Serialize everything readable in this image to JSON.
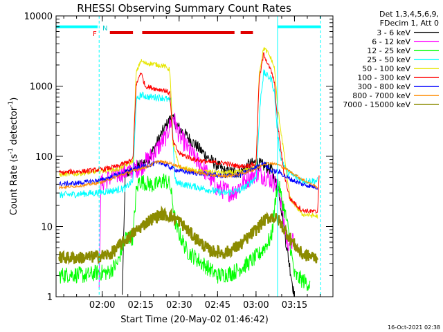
{
  "chart_data": {
    "type": "line",
    "title": "RHESSI Observing Summary Count Rates",
    "xlabel": "Start Time (20-May-02 01:46:42)",
    "ylabel": "Count Rate (s^-1 detector^-1)",
    "ylabel_parts": {
      "main": "Count Rate (s",
      "sup1": "-1",
      "mid": " detector",
      "sup2": "-1",
      "end": ")"
    },
    "yscale": "log",
    "ylim": [
      1,
      10000
    ],
    "xlim": [
      1.7,
      3.5
    ],
    "x_units": "hours UT",
    "x_ticks": [
      {
        "x": 2.0,
        "label": "02:00"
      },
      {
        "x": 2.25,
        "label": "02:15"
      },
      {
        "x": 2.5,
        "label": "02:30"
      },
      {
        "x": 2.75,
        "label": "02:45"
      },
      {
        "x": 3.0,
        "label": "03:00"
      },
      {
        "x": 3.25,
        "label": "03:15"
      }
    ],
    "y_ticks": [
      {
        "y": 1,
        "label": "1"
      },
      {
        "y": 10,
        "label": "10"
      },
      {
        "y": 100,
        "label": "100"
      },
      {
        "y": 1000,
        "label": "1000"
      },
      {
        "y": 10000,
        "label": "10000"
      }
    ],
    "legend_header": [
      "Det 1,3,4,5,6,9,",
      "FDecim 1, Att 0"
    ],
    "legend_position": "right",
    "annotations": {
      "night_label": "N",
      "flare_label": "F",
      "timestamp": "16-Oct-2021 02:38",
      "night_segments": [
        [
          1.7,
          1.97
        ],
        [
          3.14,
          3.42
        ]
      ],
      "night_level": 7000,
      "flare_segments": [
        [
          2.05,
          2.2
        ],
        [
          2.26,
          2.86
        ],
        [
          2.9,
          2.98
        ]
      ],
      "flare_level": 5800,
      "cyan_solid_lines": [
        1.7,
        3.14
      ],
      "cyan_dashed_lines": [
        1.98,
        3.42
      ]
    },
    "series": [
      {
        "name": "3 - 6 keV",
        "color": "#000000",
        "noise": 0.09,
        "points": [
          [
            2.13,
            1.0
          ],
          [
            2.15,
            55
          ],
          [
            2.2,
            65
          ],
          [
            2.3,
            90
          ],
          [
            2.4,
            240
          ],
          [
            2.45,
            360
          ],
          [
            2.5,
            250
          ],
          [
            2.6,
            150
          ],
          [
            2.7,
            90
          ],
          [
            2.8,
            60
          ],
          [
            2.9,
            60
          ],
          [
            2.95,
            75
          ],
          [
            3.0,
            82
          ],
          [
            3.1,
            65
          ],
          [
            3.15,
            30
          ],
          [
            3.2,
            5
          ],
          [
            3.25,
            1.0
          ]
        ]
      },
      {
        "name": "6 - 12 keV",
        "color": "#ff00ff",
        "noise": 0.14,
        "points": [
          [
            1.98,
            1.0
          ],
          [
            1.99,
            40
          ],
          [
            2.05,
            50
          ],
          [
            2.15,
            60
          ],
          [
            2.25,
            70
          ],
          [
            2.35,
            120
          ],
          [
            2.42,
            200
          ],
          [
            2.46,
            380
          ],
          [
            2.5,
            200
          ],
          [
            2.58,
            110
          ],
          [
            2.65,
            70
          ],
          [
            2.75,
            35
          ],
          [
            2.85,
            30
          ],
          [
            2.93,
            45
          ],
          [
            3.0,
            58
          ],
          [
            3.08,
            50
          ],
          [
            3.15,
            35
          ],
          [
            3.2,
            6
          ],
          [
            3.25,
            6
          ]
        ]
      },
      {
        "name": "12 - 25 keV",
        "color": "#00ff00",
        "noise": 0.12,
        "points": [
          [
            1.72,
            2.0
          ],
          [
            1.8,
            2.1
          ],
          [
            1.9,
            2.0
          ],
          [
            1.96,
            2.2
          ],
          [
            2.04,
            2.2
          ],
          [
            2.1,
            3.0
          ],
          [
            2.15,
            7
          ],
          [
            2.2,
            7
          ],
          [
            2.22,
            30
          ],
          [
            2.24,
            45
          ],
          [
            2.28,
            42
          ],
          [
            2.34,
            38
          ],
          [
            2.4,
            46
          ],
          [
            2.44,
            40
          ],
          [
            2.48,
            10
          ],
          [
            2.55,
            4.5
          ],
          [
            2.65,
            3
          ],
          [
            2.75,
            2
          ],
          [
            2.85,
            2.2
          ],
          [
            2.95,
            3
          ],
          [
            3.02,
            4
          ],
          [
            3.1,
            7
          ],
          [
            3.14,
            45
          ],
          [
            3.2,
            12
          ],
          [
            3.25,
            2
          ],
          [
            3.35,
            1.5
          ]
        ]
      },
      {
        "name": "25 - 50 keV",
        "color": "#00ffff",
        "noise": 0.05,
        "points": [
          [
            1.72,
            28
          ],
          [
            1.85,
            29
          ],
          [
            1.95,
            30
          ],
          [
            2.05,
            32
          ],
          [
            2.15,
            35
          ],
          [
            2.2,
            45
          ],
          [
            2.22,
            600
          ],
          [
            2.25,
            750
          ],
          [
            2.3,
            700
          ],
          [
            2.36,
            690
          ],
          [
            2.4,
            680
          ],
          [
            2.45,
            600
          ],
          [
            2.47,
            60
          ],
          [
            2.48,
            42
          ],
          [
            2.6,
            37
          ],
          [
            2.7,
            33
          ],
          [
            2.8,
            30
          ],
          [
            2.9,
            33
          ],
          [
            2.95,
            40
          ],
          [
            3.0,
            50
          ],
          [
            3.03,
            700
          ],
          [
            3.05,
            1550
          ],
          [
            3.1,
            1250
          ],
          [
            3.12,
            800
          ],
          [
            3.14,
            200
          ],
          [
            3.16,
            100
          ],
          [
            3.2,
            60
          ],
          [
            3.3,
            45
          ],
          [
            3.4,
            45
          ]
        ]
      },
      {
        "name": "50 - 100 keV",
        "color": "#e6e600",
        "noise": 0.035,
        "points": [
          [
            1.72,
            55
          ],
          [
            1.8,
            56
          ],
          [
            1.9,
            58
          ],
          [
            2.0,
            62
          ],
          [
            2.1,
            65
          ],
          [
            2.2,
            85
          ],
          [
            2.22,
            1500
          ],
          [
            2.25,
            2300
          ],
          [
            2.28,
            2100
          ],
          [
            2.32,
            2100
          ],
          [
            2.36,
            2000
          ],
          [
            2.4,
            1950
          ],
          [
            2.44,
            1700
          ],
          [
            2.46,
            150
          ],
          [
            2.5,
            70
          ],
          [
            2.6,
            62
          ],
          [
            2.7,
            60
          ],
          [
            2.8,
            58
          ],
          [
            2.9,
            60
          ],
          [
            2.95,
            65
          ],
          [
            3.0,
            70
          ],
          [
            3.02,
            1500
          ],
          [
            3.05,
            3500
          ],
          [
            3.08,
            2900
          ],
          [
            3.1,
            2400
          ],
          [
            3.12,
            1800
          ],
          [
            3.14,
            500
          ],
          [
            3.18,
            120
          ],
          [
            3.22,
            25
          ],
          [
            3.3,
            15
          ],
          [
            3.4,
            14
          ]
        ]
      },
      {
        "name": "100 - 300 keV",
        "color": "#ff0000",
        "noise": 0.035,
        "points": [
          [
            1.72,
            58
          ],
          [
            1.8,
            60
          ],
          [
            1.9,
            62
          ],
          [
            2.0,
            65
          ],
          [
            2.1,
            72
          ],
          [
            2.2,
            90
          ],
          [
            2.22,
            1000
          ],
          [
            2.25,
            1600
          ],
          [
            2.28,
            1000
          ],
          [
            2.32,
            950
          ],
          [
            2.36,
            900
          ],
          [
            2.4,
            880
          ],
          [
            2.44,
            800
          ],
          [
            2.46,
            160
          ],
          [
            2.5,
            110
          ],
          [
            2.6,
            90
          ],
          [
            2.7,
            82
          ],
          [
            2.8,
            80
          ],
          [
            2.85,
            75
          ],
          [
            2.9,
            72
          ],
          [
            2.95,
            74
          ],
          [
            3.0,
            78
          ],
          [
            3.02,
            1200
          ],
          [
            3.05,
            2900
          ],
          [
            3.08,
            2000
          ],
          [
            3.1,
            1600
          ],
          [
            3.12,
            1100
          ],
          [
            3.14,
            300
          ],
          [
            3.18,
            60
          ],
          [
            3.22,
            25
          ],
          [
            3.3,
            17
          ],
          [
            3.4,
            16
          ],
          [
            3.41,
            55
          ]
        ]
      },
      {
        "name": "300 - 800 keV",
        "color": "#0000ff",
        "noise": 0.035,
        "points": [
          [
            1.72,
            40
          ],
          [
            1.8,
            41
          ],
          [
            1.9,
            43
          ],
          [
            2.0,
            46
          ],
          [
            2.1,
            55
          ],
          [
            2.2,
            65
          ],
          [
            2.3,
            75
          ],
          [
            2.38,
            82
          ],
          [
            2.44,
            70
          ],
          [
            2.5,
            62
          ],
          [
            2.6,
            58
          ],
          [
            2.7,
            55
          ],
          [
            2.8,
            52
          ],
          [
            2.9,
            55
          ],
          [
            3.0,
            70
          ],
          [
            3.05,
            80
          ],
          [
            3.1,
            62
          ],
          [
            3.15,
            60
          ],
          [
            3.2,
            50
          ],
          [
            3.3,
            40
          ],
          [
            3.4,
            36
          ]
        ]
      },
      {
        "name": "800 - 7000 keV",
        "color": "#ff8c00",
        "noise": 0.02,
        "points": [
          [
            1.72,
            36
          ],
          [
            1.8,
            37
          ],
          [
            1.9,
            39
          ],
          [
            2.0,
            43
          ],
          [
            2.1,
            52
          ],
          [
            2.2,
            62
          ],
          [
            2.3,
            72
          ],
          [
            2.36,
            85
          ],
          [
            2.44,
            80
          ],
          [
            2.5,
            72
          ],
          [
            2.6,
            60
          ],
          [
            2.7,
            54
          ],
          [
            2.8,
            52
          ],
          [
            2.9,
            56
          ],
          [
            3.0,
            66
          ],
          [
            3.05,
            78
          ],
          [
            3.1,
            80
          ],
          [
            3.15,
            75
          ],
          [
            3.2,
            65
          ],
          [
            3.3,
            47
          ],
          [
            3.4,
            36
          ]
        ]
      },
      {
        "name": "7000 - 15000 keV",
        "color": "#8b8b00",
        "noise": 0.09,
        "points": [
          [
            1.72,
            3.6
          ],
          [
            1.85,
            3.6
          ],
          [
            1.95,
            3.7
          ],
          [
            2.05,
            4.0
          ],
          [
            2.1,
            5
          ],
          [
            2.2,
            8
          ],
          [
            2.3,
            12
          ],
          [
            2.38,
            15
          ],
          [
            2.45,
            14
          ],
          [
            2.5,
            12
          ],
          [
            2.6,
            7
          ],
          [
            2.7,
            4.5
          ],
          [
            2.8,
            4.2
          ],
          [
            2.9,
            5.5
          ],
          [
            3.0,
            9
          ],
          [
            3.05,
            12
          ],
          [
            3.1,
            14
          ],
          [
            3.15,
            12
          ],
          [
            3.2,
            8
          ],
          [
            3.25,
            5.5
          ],
          [
            3.3,
            4
          ],
          [
            3.4,
            3.6
          ]
        ]
      }
    ]
  }
}
